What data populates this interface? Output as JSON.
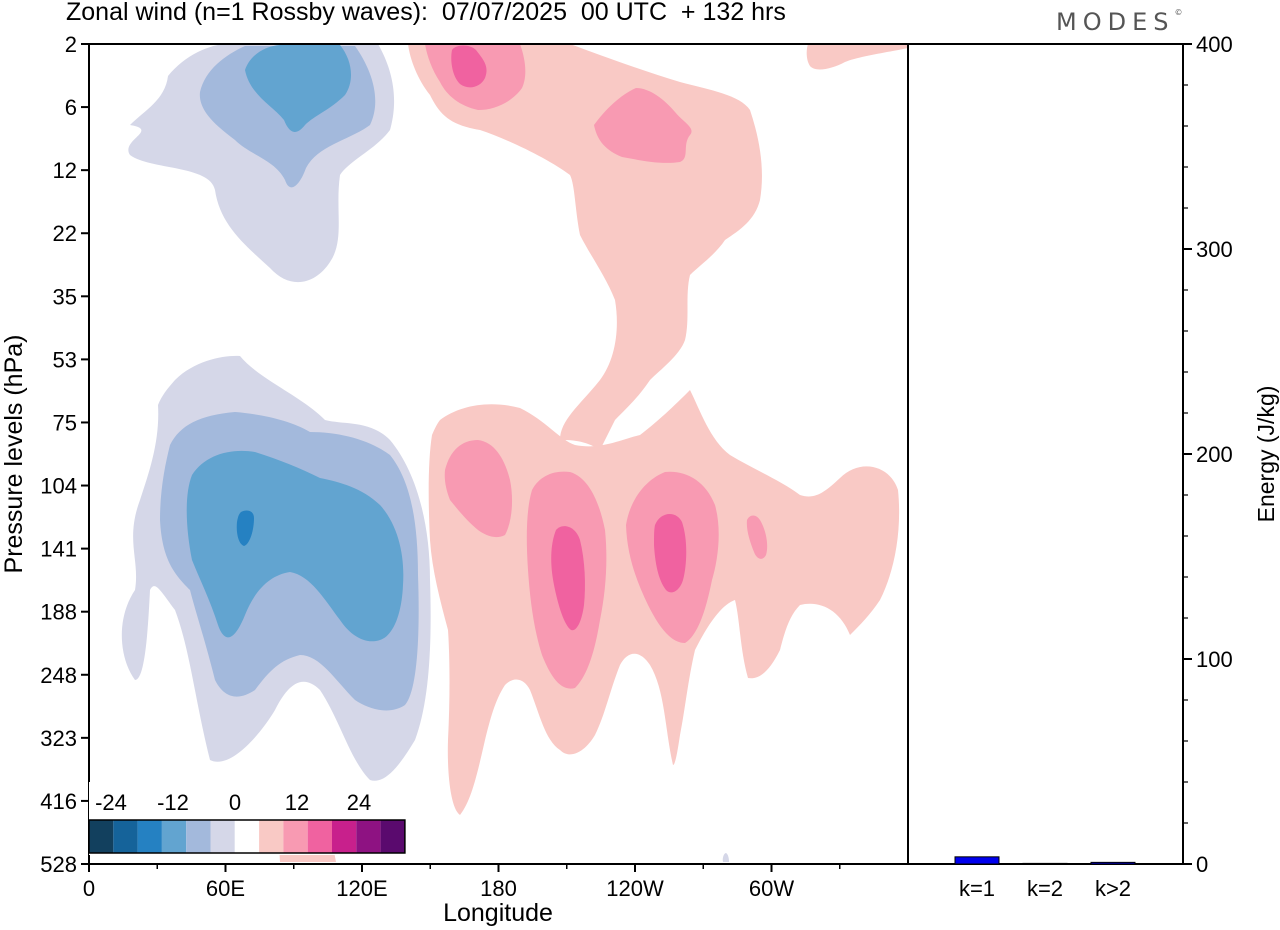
{
  "header": {
    "title": "Zonal wind (n=1 Rossby waves):  07/07/2025  00 UTC  + 132 hrs",
    "brand": "MODES",
    "brand_mark": "©"
  },
  "colors": {
    "negative": [
      "#12405e",
      "#15639a",
      "#2581c2",
      "#62a4d0",
      "#a3b9dc",
      "#d5d7e8"
    ],
    "zero": "#ffffff",
    "positive": [
      "#f9c9c5",
      "#f89ab2",
      "#f062a0",
      "#c8208c",
      "#8e1282",
      "#5a0a6e"
    ],
    "bar": "#0000ee"
  },
  "chart_data": [
    {
      "type": "heatmap",
      "title": "Zonal wind (n=1 Rossby waves):  07/07/2025  00 UTC  + 132 hrs",
      "xlabel": "Longitude",
      "ylabel": "Pressure levels (hPa)",
      "x_ticks": [
        "0",
        "60E",
        "120E",
        "180",
        "120W",
        "60W"
      ],
      "x_tick_degrees": [
        0,
        60,
        120,
        180,
        240,
        300
      ],
      "xlim": [
        0,
        360
      ],
      "y_ticks": [
        "2",
        "6",
        "12",
        "22",
        "35",
        "53",
        "75",
        "104",
        "141",
        "188",
        "248",
        "323",
        "416",
        "528"
      ],
      "colorbar": {
        "labels": [
          "-24",
          "-12",
          "0",
          "12",
          "24"
        ],
        "levels": [
          -30,
          -25,
          -20,
          -15,
          -10,
          -5,
          0,
          5,
          10,
          15,
          20,
          25,
          30
        ]
      },
      "features": [
        {
          "sign": "negative",
          "label": "upper-level easterly core",
          "lon": 90,
          "level_hpa": 4,
          "peak": -12
        },
        {
          "sign": "negative",
          "label": "tropospheric easterly core",
          "lon": 70,
          "level_hpa": 125,
          "peak": -17
        },
        {
          "sign": "positive",
          "label": "upper-level westerly core",
          "lon": 165,
          "level_hpa": 3,
          "peak": 12
        },
        {
          "sign": "positive",
          "label": "upper-level westerly core",
          "lon": 232,
          "level_hpa": 8,
          "peak": 8
        },
        {
          "sign": "positive",
          "label": "tropospheric westerly core",
          "lon": 210,
          "level_hpa": 150,
          "peak": 12
        },
        {
          "sign": "positive",
          "label": "tropospheric westerly core",
          "lon": 255,
          "level_hpa": 140,
          "peak": 12
        },
        {
          "sign": "positive",
          "label": "tropospheric westerly core",
          "lon": 175,
          "level_hpa": 110,
          "peak": 8
        }
      ]
    },
    {
      "type": "bar",
      "ylabel": "Energy (J/kg)",
      "ylim": [
        0,
        400
      ],
      "y_ticks": [
        "0",
        "100",
        "200",
        "300",
        "400"
      ],
      "categories": [
        "k=1",
        "k=2",
        "k>2"
      ],
      "values": [
        3.5,
        0.3,
        0.8
      ]
    }
  ]
}
